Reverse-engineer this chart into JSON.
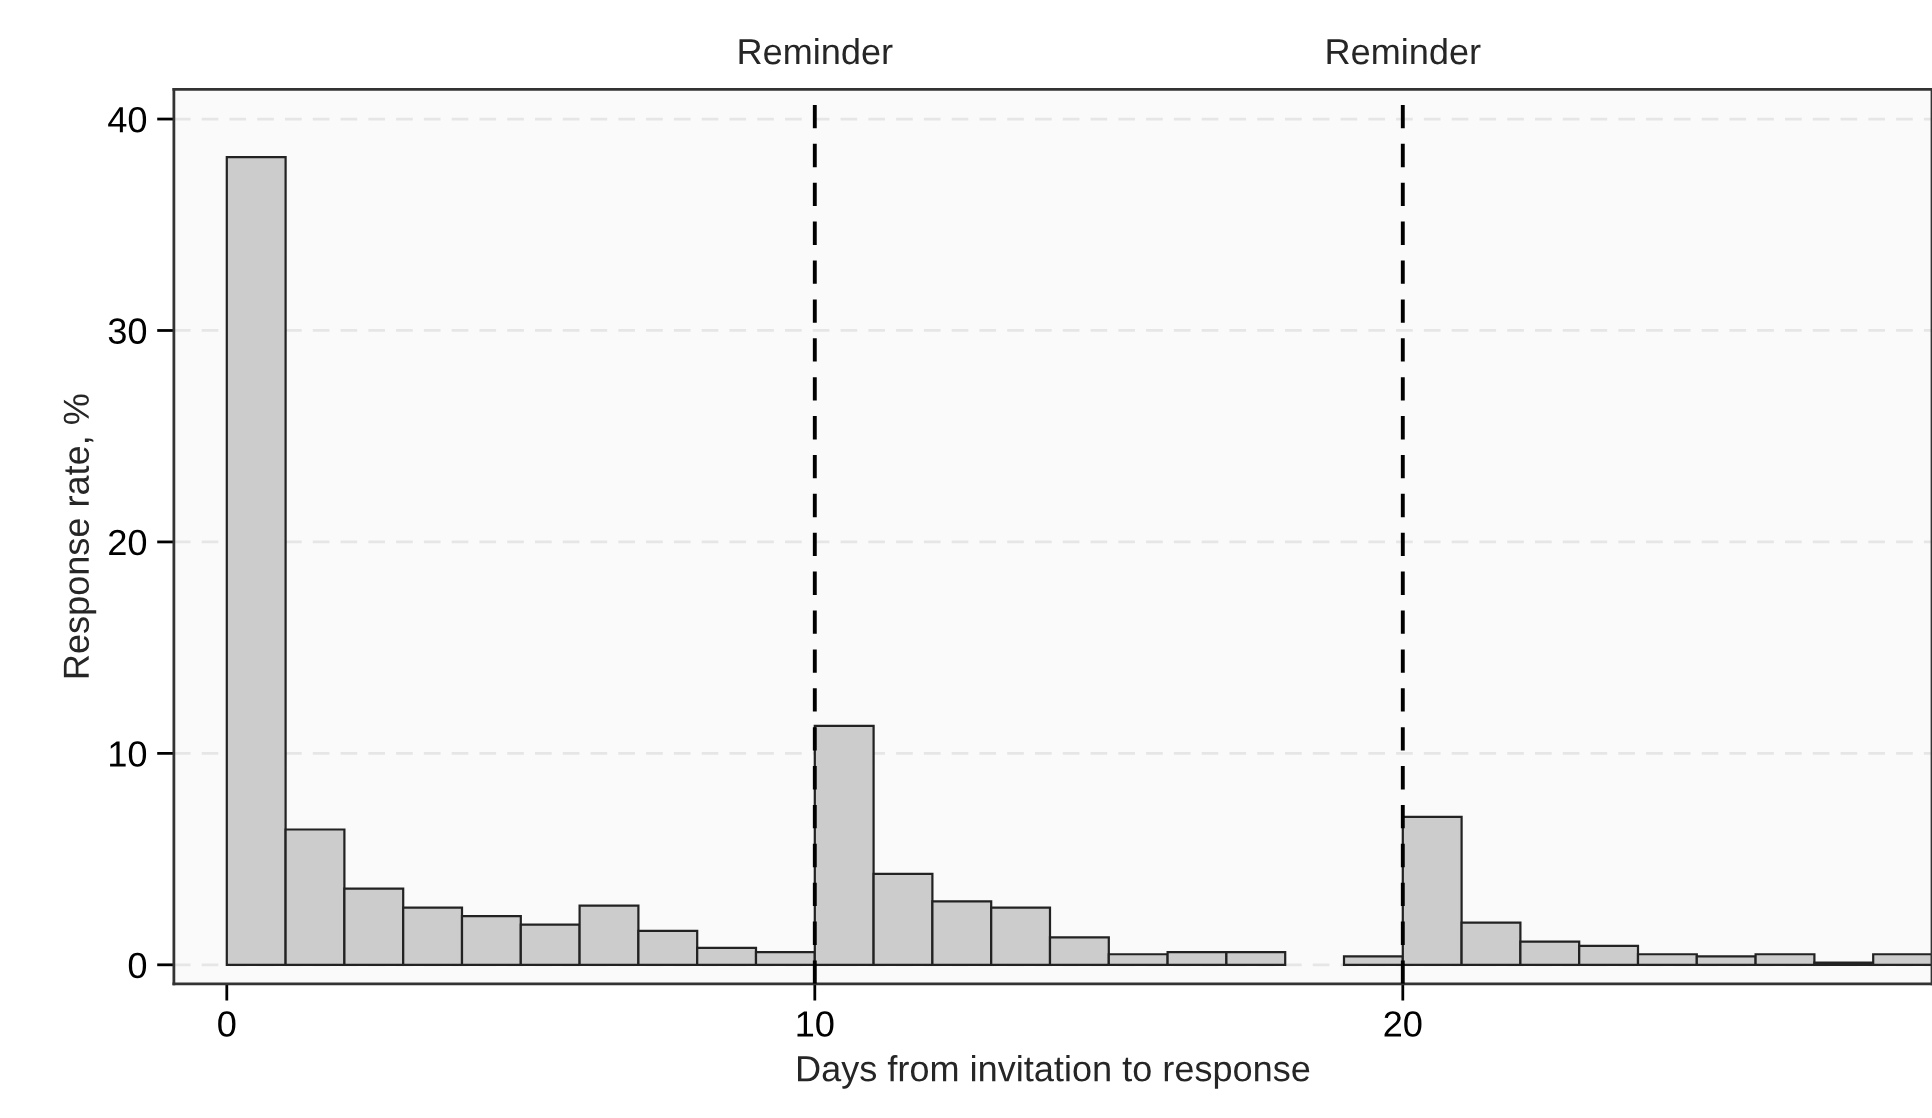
{
  "chart_data": {
    "type": "histogram",
    "xlabel": "Days from invitation to response",
    "ylabel": "Response rate, %",
    "bins": [
      0,
      1,
      2,
      3,
      4,
      5,
      6,
      7,
      8,
      9,
      10,
      11,
      12,
      13,
      14,
      15,
      16,
      17,
      18,
      19,
      20,
      21,
      22,
      23,
      24,
      25,
      26,
      27,
      28,
      29
    ],
    "values": [
      38.2,
      6.4,
      3.6,
      2.7,
      2.3,
      1.9,
      2.8,
      1.6,
      0.8,
      0.6,
      11.3,
      4.3,
      3.0,
      2.7,
      1.3,
      0.5,
      0.6,
      0.6,
      0,
      0.4,
      7.0,
      2.0,
      1.1,
      0.9,
      0.5,
      0.4,
      0.5,
      0.1,
      0.5
    ],
    "color": "#cccccc",
    "xlim": [
      -0.9,
      29
    ],
    "ylim": [
      -0.9,
      41.4
    ],
    "xticks": [
      0,
      10,
      20
    ],
    "yticks": [
      0,
      10,
      20,
      30,
      40
    ],
    "grid": "y",
    "ref_lines": [
      {
        "axis": "x",
        "value": 10,
        "label": "Reminder",
        "color": "#000000",
        "line_style": "dashed"
      },
      {
        "axis": "x",
        "value": 20,
        "label": "Reminder",
        "color": "#000000",
        "line_style": "dashed"
      }
    ]
  }
}
